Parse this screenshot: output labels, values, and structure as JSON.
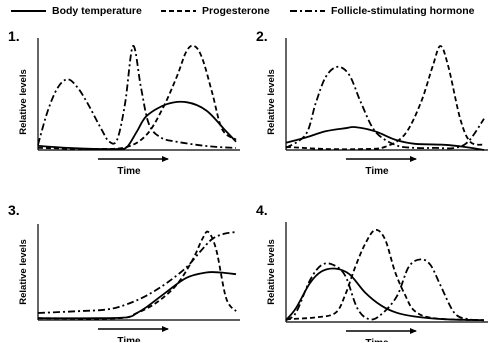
{
  "legend": [
    {
      "label": "Body temperature",
      "series_key": "body_temperature",
      "dash": "solid"
    },
    {
      "label": "Progesterone",
      "series_key": "progesterone",
      "dash": "dashed"
    },
    {
      "label": "Follicle-stimulating hormone",
      "series_key": "fsh",
      "dash": "dashdot"
    }
  ],
  "chart_data": [
    {
      "type": "line",
      "panel_label": "1.",
      "xlabel": "Time",
      "ylabel": "Relative levels",
      "xlim": [
        0,
        100
      ],
      "ylim": [
        0,
        100
      ],
      "series": [
        {
          "name": "Body temperature",
          "key": "body_temperature",
          "points": [
            [
              0,
              4
            ],
            [
              15,
              2
            ],
            [
              30,
              1
            ],
            [
              40,
              1
            ],
            [
              45,
              3
            ],
            [
              50,
              18
            ],
            [
              55,
              33
            ],
            [
              65,
              44
            ],
            [
              75,
              46
            ],
            [
              85,
              38
            ],
            [
              95,
              18
            ],
            [
              100,
              8
            ]
          ]
        },
        {
          "name": "Progesterone",
          "key": "progesterone",
          "points": [
            [
              0,
              2
            ],
            [
              30,
              1
            ],
            [
              45,
              3
            ],
            [
              55,
              15
            ],
            [
              63,
              40
            ],
            [
              70,
              70
            ],
            [
              75,
              95
            ],
            [
              79,
              100
            ],
            [
              83,
              88
            ],
            [
              88,
              55
            ],
            [
              93,
              20
            ],
            [
              100,
              10
            ]
          ]
        },
        {
          "name": "Follicle-stimulating hormone",
          "key": "fsh",
          "points": [
            [
              0,
              5
            ],
            [
              5,
              38
            ],
            [
              10,
              60
            ],
            [
              15,
              68
            ],
            [
              20,
              60
            ],
            [
              25,
              45
            ],
            [
              32,
              20
            ],
            [
              36,
              8
            ],
            [
              40,
              10
            ],
            [
              44,
              45
            ],
            [
              48,
              100
            ],
            [
              52,
              60
            ],
            [
              56,
              25
            ],
            [
              62,
              12
            ],
            [
              70,
              8
            ],
            [
              80,
              5
            ],
            [
              90,
              3
            ],
            [
              100,
              2
            ]
          ]
        }
      ]
    },
    {
      "type": "line",
      "panel_label": "2.",
      "xlabel": "Time",
      "ylabel": "Relative levels",
      "xlim": [
        0,
        100
      ],
      "ylim": [
        0,
        100
      ],
      "series": [
        {
          "name": "Body temperature",
          "key": "body_temperature",
          "points": [
            [
              0,
              7
            ],
            [
              10,
              12
            ],
            [
              20,
              18
            ],
            [
              30,
              21
            ],
            [
              35,
              22
            ],
            [
              45,
              18
            ],
            [
              55,
              10
            ],
            [
              65,
              6
            ],
            [
              80,
              5
            ],
            [
              90,
              3
            ],
            [
              100,
              0
            ]
          ]
        },
        {
          "name": "Progesterone",
          "key": "progesterone",
          "points": [
            [
              0,
              3
            ],
            [
              20,
              1
            ],
            [
              40,
              1
            ],
            [
              50,
              3
            ],
            [
              60,
              15
            ],
            [
              68,
              45
            ],
            [
              74,
              80
            ],
            [
              78,
              100
            ],
            [
              82,
              80
            ],
            [
              88,
              30
            ],
            [
              93,
              8
            ],
            [
              100,
              5
            ]
          ]
        },
        {
          "name": "Follicle-stimulating hormone",
          "key": "fsh",
          "points": [
            [
              0,
              2
            ],
            [
              10,
              15
            ],
            [
              15,
              45
            ],
            [
              20,
              70
            ],
            [
              26,
              80
            ],
            [
              32,
              72
            ],
            [
              38,
              45
            ],
            [
              45,
              18
            ],
            [
              55,
              5
            ],
            [
              65,
              2
            ],
            [
              75,
              2
            ],
            [
              85,
              2
            ],
            [
              92,
              8
            ],
            [
              100,
              30
            ]
          ]
        }
      ]
    },
    {
      "type": "line",
      "panel_label": "3.",
      "xlabel": "Time",
      "ylabel": "Relative levels",
      "xlim": [
        0,
        100
      ],
      "ylim": [
        0,
        100
      ],
      "series": [
        {
          "name": "Body temperature",
          "key": "body_temperature",
          "points": [
            [
              0,
              2
            ],
            [
              30,
              2
            ],
            [
              45,
              3
            ],
            [
              50,
              8
            ],
            [
              55,
              15
            ],
            [
              65,
              32
            ],
            [
              75,
              48
            ],
            [
              85,
              54
            ],
            [
              92,
              54
            ],
            [
              100,
              52
            ]
          ]
        },
        {
          "name": "Progesterone",
          "key": "progesterone",
          "points": [
            [
              0,
              2
            ],
            [
              40,
              2
            ],
            [
              50,
              8
            ],
            [
              60,
              20
            ],
            [
              70,
              40
            ],
            [
              78,
              68
            ],
            [
              83,
              92
            ],
            [
              86,
              100
            ],
            [
              90,
              80
            ],
            [
              95,
              25
            ],
            [
              100,
              10
            ]
          ]
        },
        {
          "name": "Follicle-stimulating hormone",
          "key": "fsh",
          "points": [
            [
              0,
              8
            ],
            [
              20,
              10
            ],
            [
              35,
              12
            ],
            [
              45,
              18
            ],
            [
              55,
              28
            ],
            [
              65,
              42
            ],
            [
              75,
              60
            ],
            [
              82,
              78
            ],
            [
              88,
              92
            ],
            [
              94,
              98
            ],
            [
              100,
              100
            ]
          ]
        }
      ]
    },
    {
      "type": "line",
      "panel_label": "4.",
      "xlabel": "Time",
      "ylabel": "Relative levels",
      "xlim": [
        0,
        100
      ],
      "ylim": [
        0,
        100
      ],
      "series": [
        {
          "name": "Body temperature",
          "key": "body_temperature",
          "points": [
            [
              0,
              2
            ],
            [
              5,
              15
            ],
            [
              12,
              42
            ],
            [
              18,
              55
            ],
            [
              25,
              58
            ],
            [
              32,
              52
            ],
            [
              40,
              32
            ],
            [
              48,
              18
            ],
            [
              56,
              10
            ],
            [
              65,
              6
            ],
            [
              80,
              3
            ],
            [
              100,
              2
            ]
          ]
        },
        {
          "name": "Progesterone",
          "key": "progesterone",
          "points": [
            [
              0,
              3
            ],
            [
              15,
              5
            ],
            [
              25,
              10
            ],
            [
              30,
              30
            ],
            [
              35,
              60
            ],
            [
              40,
              85
            ],
            [
              45,
              100
            ],
            [
              50,
              90
            ],
            [
              55,
              55
            ],
            [
              60,
              30
            ],
            [
              65,
              12
            ],
            [
              75,
              4
            ],
            [
              100,
              2
            ]
          ]
        },
        {
          "name": "Follicle-stimulating hormone",
          "key": "fsh",
          "points": [
            [
              0,
              2
            ],
            [
              5,
              10
            ],
            [
              12,
              45
            ],
            [
              18,
              62
            ],
            [
              24,
              62
            ],
            [
              30,
              50
            ],
            [
              36,
              15
            ],
            [
              42,
              3
            ],
            [
              48,
              8
            ],
            [
              56,
              28
            ],
            [
              62,
              60
            ],
            [
              68,
              68
            ],
            [
              73,
              62
            ],
            [
              78,
              40
            ],
            [
              85,
              10
            ],
            [
              92,
              3
            ],
            [
              100,
              2
            ]
          ]
        }
      ]
    }
  ]
}
